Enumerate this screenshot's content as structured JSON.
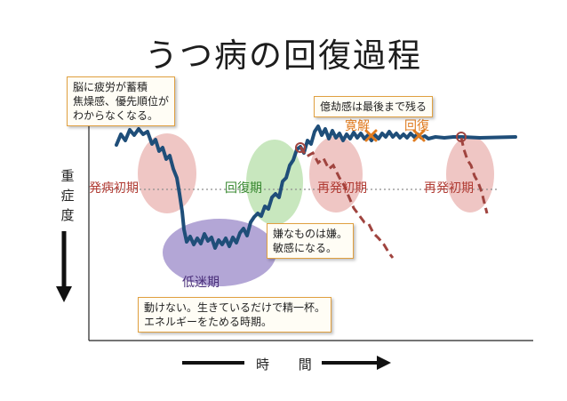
{
  "title": "うつ病の回復過程",
  "y_axis_label": [
    "重",
    "症",
    "度"
  ],
  "x_axis_label": "時 間",
  "phases": {
    "initial": "発病初期",
    "recovery": "回復期",
    "low": "低迷期",
    "relapse1": "再発初期",
    "relapse2": "再発初期"
  },
  "markers": {
    "tolerance": "寛解",
    "recovered": "回復"
  },
  "callouts": {
    "fatigue": [
      "脳に疲労が蓄積",
      "焦燥感、優先順位が",
      "わからなくなる。"
    ],
    "lethargy": "億劫感は最後まで残る",
    "sensitive": [
      "嫌なものは嫌。",
      "敏感になる。"
    ],
    "immobile": [
      "動けない。生きているだけで精一杯。",
      "エネルギーをためる時期。"
    ]
  },
  "colors": {
    "curve": "#1f4e79",
    "relapse_line": "#a0443f",
    "phase_red": "#e7a7a4",
    "phase_green": "#b5dfa8",
    "phase_purple": "#9a88c8",
    "text_red": "#b03a32",
    "text_green": "#3a8a32",
    "text_purple": "#4a2f7a",
    "orange": "#e07b1f"
  }
}
